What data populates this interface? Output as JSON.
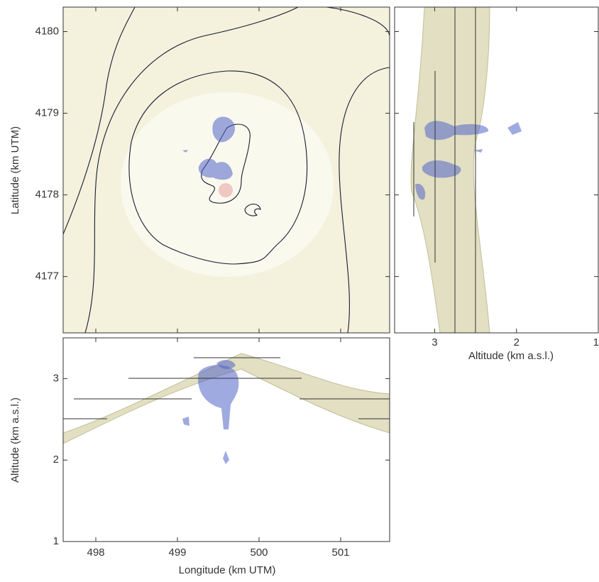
{
  "chart_data": [
    {
      "type": "map",
      "ylabel": "Latitude (km UTM)",
      "ylim": [
        4176.31,
        4180.3
      ],
      "yticks": [
        4177,
        4178,
        4179,
        4180
      ]
    },
    {
      "type": "ns-section",
      "xlabel": "Altitude (km a.s.l.)",
      "xlim": [
        3.49,
        1
      ],
      "xticks": [
        3,
        2,
        1
      ]
    },
    {
      "type": "ew-section",
      "xlabel": "Longitude (km UTM)",
      "ylabel": "Altitude (km a.s.l.)",
      "xlim": [
        497.6,
        501.6
      ],
      "xticks": [
        498,
        499,
        500,
        501
      ],
      "ylim": [
        1,
        3.5
      ],
      "yticks": [
        1,
        2,
        3
      ]
    }
  ]
}
